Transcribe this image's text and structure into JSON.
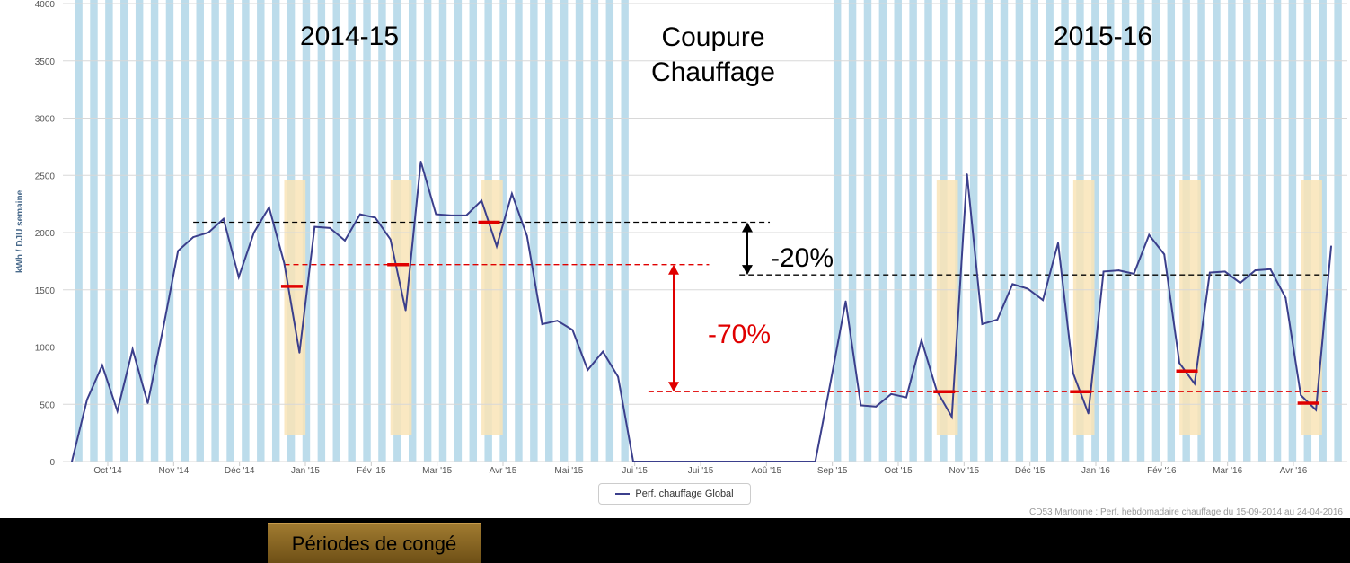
{
  "chart_data": {
    "type": "line",
    "ylabel": "kWh / DJU semaine",
    "ylim": [
      0,
      4000
    ],
    "yticks": [
      0,
      500,
      1000,
      1500,
      2000,
      2500,
      3000,
      3500,
      4000
    ],
    "x_tick_labels": [
      "Oct '14",
      "Nov '14",
      "Déc '14",
      "Jan '15",
      "Fév '15",
      "Mar '15",
      "Avr '15",
      "Mai '15",
      "Jui '15",
      "Jui '15",
      "Aoû '15",
      "Sep '15",
      "Oct '15",
      "Nov '15",
      "Déc '15",
      "Jan '16",
      "Fév '16",
      "Mar '16",
      "Avr '16"
    ],
    "weeks": 84,
    "series": [
      {
        "name": "Perf. chauffage Global",
        "color": "#3b3f8c",
        "points": [
          [
            0,
            0
          ],
          [
            1,
            540
          ],
          [
            2,
            840
          ],
          [
            3,
            440
          ],
          [
            4,
            980
          ],
          [
            5,
            510
          ],
          [
            6,
            1150
          ],
          [
            7,
            1840
          ],
          [
            8,
            1960
          ],
          [
            9,
            2000
          ],
          [
            10,
            2120
          ],
          [
            11,
            1610
          ],
          [
            12,
            2000
          ],
          [
            13,
            2220
          ],
          [
            14,
            1730
          ],
          [
            15,
            950
          ],
          [
            16,
            2050
          ],
          [
            17,
            2040
          ],
          [
            18,
            1930
          ],
          [
            19,
            2160
          ],
          [
            20,
            2130
          ],
          [
            21,
            1940
          ],
          [
            22,
            1320
          ],
          [
            23,
            2620
          ],
          [
            24,
            2160
          ],
          [
            25,
            2150
          ],
          [
            26,
            2150
          ],
          [
            27,
            2280
          ],
          [
            28,
            1880
          ],
          [
            29,
            2340
          ],
          [
            30,
            1970
          ],
          [
            31,
            1200
          ],
          [
            32,
            1230
          ],
          [
            33,
            1150
          ],
          [
            34,
            800
          ],
          [
            35,
            960
          ],
          [
            36,
            740
          ],
          [
            37,
            0
          ],
          [
            38,
            0
          ],
          [
            39,
            0
          ],
          [
            40,
            0
          ],
          [
            41,
            0
          ],
          [
            42,
            0
          ],
          [
            43,
            0
          ],
          [
            44,
            0
          ],
          [
            45,
            0
          ],
          [
            46,
            0
          ],
          [
            47,
            0
          ],
          [
            48,
            0
          ],
          [
            49,
            0
          ],
          [
            50,
            690
          ],
          [
            51,
            1400
          ],
          [
            52,
            490
          ],
          [
            53,
            480
          ],
          [
            54,
            590
          ],
          [
            55,
            560
          ],
          [
            56,
            1060
          ],
          [
            57,
            620
          ],
          [
            58,
            390
          ],
          [
            59,
            2510
          ],
          [
            60,
            1200
          ],
          [
            61,
            1240
          ],
          [
            62,
            1550
          ],
          [
            63,
            1510
          ],
          [
            64,
            1410
          ],
          [
            65,
            1910
          ],
          [
            66,
            770
          ],
          [
            67,
            420
          ],
          [
            68,
            1660
          ],
          [
            69,
            1670
          ],
          [
            70,
            1640
          ],
          [
            71,
            1980
          ],
          [
            72,
            1810
          ],
          [
            73,
            860
          ],
          [
            74,
            680
          ],
          [
            75,
            1650
          ],
          [
            76,
            1660
          ],
          [
            77,
            1560
          ],
          [
            78,
            1670
          ],
          [
            79,
            1680
          ],
          [
            80,
            1430
          ],
          [
            81,
            580
          ],
          [
            82,
            450
          ],
          [
            83,
            1880
          ]
        ]
      }
    ],
    "holiday_week_ranges": [
      [
        14,
        15.4
      ],
      [
        21,
        22.4
      ],
      [
        27,
        28.4
      ],
      [
        57,
        58.4
      ],
      [
        66,
        67.4
      ],
      [
        73,
        74.4
      ],
      [
        81,
        82.4
      ]
    ],
    "holiday_levels": [
      {
        "week": 14.5,
        "value": 1530
      },
      {
        "week": 21.5,
        "value": 1720
      },
      {
        "week": 27.5,
        "value": 2090
      },
      {
        "week": 57.5,
        "value": 610
      },
      {
        "week": 66.5,
        "value": 610
      },
      {
        "week": 73.5,
        "value": 790
      },
      {
        "week": 81.5,
        "value": 510
      }
    ],
    "reference_lines": [
      {
        "from_week": 8,
        "to_week": 46,
        "value": 2090,
        "color": "#000000"
      },
      {
        "from_week": 14,
        "to_week": 42,
        "value": 1720,
        "color": "#e00000"
      },
      {
        "from_week": 44,
        "to_week": 83,
        "value": 1630,
        "color": "#000000"
      },
      {
        "from_week": 38,
        "to_week": 83,
        "value": 610,
        "color": "#e00000"
      }
    ],
    "annotations": {
      "season1": "2014-15",
      "season2": "2015-16",
      "cutoff_line1": "Coupure",
      "cutoff_line2": "Chauffage",
      "drop20": "-20%",
      "drop70": "-70%"
    },
    "credit": "CD53 Martonne : Perf. hebdomadaire chauffage du 15-09-2014 au 24-04-2016",
    "colors": {
      "series": "#3b3f8c",
      "week_stripe": "#bcdceb",
      "holiday": "#f9e4b7",
      "level_marker": "#e00000",
      "dashed_red": "#e00000",
      "dashed_black": "#000000"
    }
  },
  "legend": {
    "label": "Perf. chauffage Global",
    "holiday_label": "Périodes de congé"
  }
}
